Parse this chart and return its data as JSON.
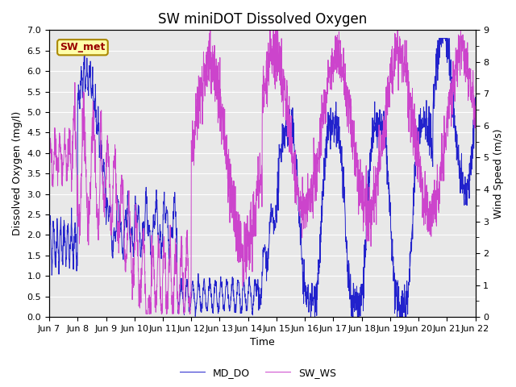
{
  "title": "SW miniDOT Dissolved Oxygen",
  "xlabel": "Time",
  "ylabel_left": "Dissolved Oxygen (mg/l)",
  "ylabel_right": "Wind Speed (m/s)",
  "ylim_left": [
    0.0,
    7.0
  ],
  "ylim_right": [
    0.0,
    9.0
  ],
  "yticks_left": [
    0.0,
    0.5,
    1.0,
    1.5,
    2.0,
    2.5,
    3.0,
    3.5,
    4.0,
    4.5,
    5.0,
    5.5,
    6.0,
    6.5,
    7.0
  ],
  "yticks_right_major": [
    0.0,
    1.0,
    2.0,
    3.0,
    4.0,
    5.0,
    6.0,
    7.0,
    8.0,
    9.0
  ],
  "yticks_right_minor": [
    0.5,
    1.5,
    2.5,
    3.5,
    4.5,
    5.5,
    6.5,
    7.5,
    8.5
  ],
  "xtick_labels": [
    "Jun 7",
    "Jun 8",
    "Jun 9",
    "Jun 10",
    "Jun 11",
    "Jun 12",
    "Jun 13",
    "Jun 14",
    "Jun 15",
    "Jun 16",
    "Jun 17",
    "Jun 18",
    "Jun 19",
    "Jun 20",
    "Jun 21",
    "Jun 22"
  ],
  "color_do": "#2222cc",
  "color_ws": "#cc44cc",
  "legend_entries": [
    "MD_DO",
    "SW_WS"
  ],
  "annotation_text": "SW_met",
  "annotation_color": "#990000",
  "annotation_bg": "#ffffaa",
  "annotation_border": "#aa8800",
  "bg_color": "#e8e8e8",
  "fig_bg": "#ffffff",
  "title_fontsize": 12,
  "axis_label_fontsize": 9,
  "tick_fontsize": 8,
  "legend_fontsize": 9
}
